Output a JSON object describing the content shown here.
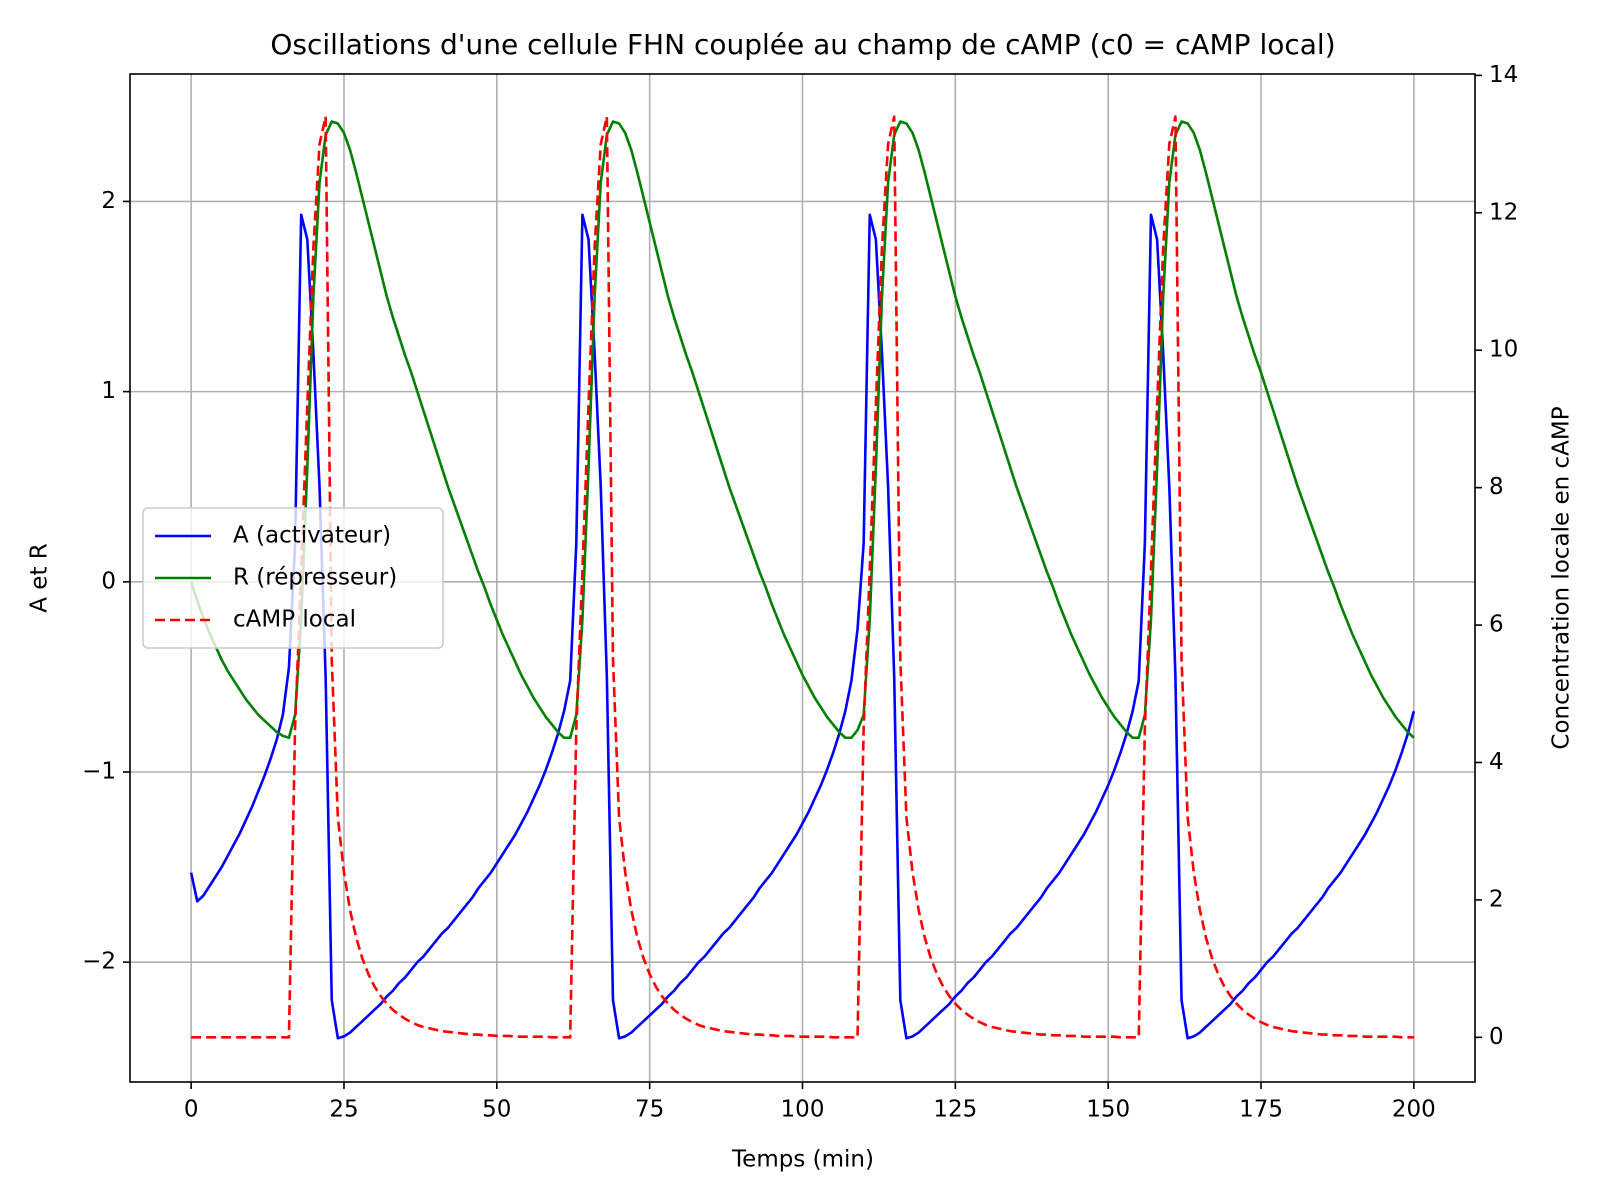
{
  "chart_data": {
    "type": "line",
    "title": "Oscillations d'une cellule FHN couplée au champ de cAMP (c0 = cAMP local)",
    "xlabel": "Temps (min)",
    "ylabel": "A et R",
    "y2label": "Concentration locale en cAMP",
    "x": [
      0,
      1,
      2,
      3,
      4,
      5,
      6,
      7,
      8,
      9,
      10,
      11,
      12,
      13,
      14,
      15,
      16,
      17,
      18,
      19,
      20,
      21,
      22,
      23,
      24,
      25,
      26,
      27,
      28,
      29,
      30,
      31,
      32,
      33,
      34,
      35,
      36,
      37,
      38,
      39,
      40,
      41,
      42,
      43,
      44,
      45,
      46,
      47,
      48,
      49,
      50,
      51,
      52,
      53,
      54,
      55,
      56,
      57,
      58,
      59,
      60,
      61,
      62,
      63,
      64,
      65,
      66,
      67,
      68,
      69,
      70,
      71,
      72,
      73,
      74,
      75,
      76,
      77,
      78,
      79,
      80,
      81,
      82,
      83,
      84,
      85,
      86,
      87,
      88,
      89,
      90,
      91,
      92,
      93,
      94,
      95,
      96,
      97,
      98,
      99,
      100,
      101,
      102,
      103,
      104,
      105,
      106,
      107,
      108,
      109,
      110,
      111,
      112,
      113,
      114,
      115,
      116,
      117,
      118,
      119,
      120,
      121,
      122,
      123,
      124,
      125,
      126,
      127,
      128,
      129,
      130,
      131,
      132,
      133,
      134,
      135,
      136,
      137,
      138,
      139,
      140,
      141,
      142,
      143,
      144,
      145,
      146,
      147,
      148,
      149,
      150,
      151,
      152,
      153,
      154,
      155,
      156,
      157,
      158,
      159,
      160,
      161,
      162,
      163,
      164,
      165,
      166,
      167,
      168,
      169,
      170,
      171,
      172,
      173,
      174,
      175,
      176,
      177,
      178,
      179,
      180,
      181,
      182,
      183,
      184,
      185,
      186,
      187,
      188,
      189,
      190,
      191,
      192,
      193,
      194,
      195,
      196,
      197,
      198,
      199,
      200
    ],
    "series": [
      {
        "name": "A (activateur)",
        "color": "#0000ff",
        "linestyle": "solid",
        "axis": "y",
        "values": [
          -1.53,
          -1.68,
          -1.65,
          -1.6,
          -1.55,
          -1.5,
          -1.44,
          -1.38,
          -1.32,
          -1.25,
          -1.18,
          -1.1,
          -1.02,
          -0.93,
          -0.83,
          -0.7,
          -0.45,
          0.2,
          1.93,
          1.8,
          1.2,
          0.5,
          -0.5,
          -2.2,
          -2.4,
          -2.39,
          -2.37,
          -2.34,
          -2.31,
          -2.28,
          -2.25,
          -2.22,
          -2.18,
          -2.15,
          -2.11,
          -2.08,
          -2.04,
          -2.0,
          -1.97,
          -1.93,
          -1.89,
          -1.85,
          -1.82,
          -1.78,
          -1.74,
          -1.7,
          -1.66,
          -1.61,
          -1.57,
          -1.53,
          -1.48,
          -1.43,
          -1.38,
          -1.33,
          -1.27,
          -1.21,
          -1.14,
          -1.07,
          -0.99,
          -0.9,
          -0.8,
          -0.68,
          -0.52,
          0.2,
          1.93,
          1.8,
          1.2,
          0.5,
          -0.5,
          -2.2,
          -2.4,
          -2.39,
          -2.37,
          -2.34,
          -2.31,
          -2.28,
          -2.25,
          -2.22,
          -2.18,
          -2.15,
          -2.11,
          -2.08,
          -2.04,
          -2.0,
          -1.97,
          -1.93,
          -1.89,
          -1.85,
          -1.82,
          -1.78,
          -1.74,
          -1.7,
          -1.66,
          -1.61,
          -1.57,
          -1.53,
          -1.48,
          -1.43,
          -1.38,
          -1.33,
          -1.27,
          -1.21,
          -1.14,
          -1.07,
          -0.99,
          -0.9,
          -0.8,
          -0.68,
          -0.52,
          -0.25,
          0.2,
          1.93,
          1.8,
          1.2,
          0.5,
          -0.5,
          -2.2,
          -2.4,
          -2.39,
          -2.37,
          -2.34,
          -2.31,
          -2.28,
          -2.25,
          -2.22,
          -2.18,
          -2.15,
          -2.11,
          -2.08,
          -2.04,
          -2.0,
          -1.97,
          -1.93,
          -1.89,
          -1.85,
          -1.82,
          -1.78,
          -1.74,
          -1.7,
          -1.66,
          -1.61,
          -1.57,
          -1.53,
          -1.48,
          -1.43,
          -1.38,
          -1.33,
          -1.27,
          -1.21,
          -1.14,
          -1.07,
          -0.99,
          -0.9,
          -0.8,
          -0.68,
          -0.52,
          0.2,
          1.93,
          1.8,
          1.2,
          0.5,
          -0.5,
          -2.2,
          -2.4,
          -2.39,
          -2.37,
          -2.34,
          -2.31,
          -2.28,
          -2.25,
          -2.22,
          -2.18,
          -2.15,
          -2.11,
          -2.08,
          -2.04,
          -2.0,
          -1.97,
          -1.93,
          -1.89,
          -1.85,
          -1.82,
          -1.78,
          -1.74,
          -1.7,
          -1.66,
          -1.61,
          -1.57,
          -1.53,
          -1.48,
          -1.43,
          -1.38,
          -1.33,
          -1.27,
          -1.21,
          -1.14,
          -1.07,
          -0.99,
          -0.9,
          -0.8,
          -0.68
        ]
      },
      {
        "name": "R (répresseur)",
        "color": "#008000",
        "linestyle": "solid",
        "axis": "y",
        "values": [
          0,
          -0.1,
          -0.19,
          -0.27,
          -0.34,
          -0.41,
          -0.47,
          -0.52,
          -0.57,
          -0.62,
          -0.66,
          -0.7,
          -0.73,
          -0.76,
          -0.79,
          -0.81,
          -0.82,
          -0.7,
          -0.2,
          0.6,
          1.5,
          2.1,
          2.35,
          2.42,
          2.41,
          2.36,
          2.27,
          2.15,
          2.02,
          1.89,
          1.76,
          1.63,
          1.5,
          1.39,
          1.29,
          1.19,
          1.1,
          1.0,
          0.9,
          0.8,
          0.7,
          0.6,
          0.5,
          0.41,
          0.32,
          0.23,
          0.14,
          0.05,
          -0.03,
          -0.12,
          -0.2,
          -0.28,
          -0.35,
          -0.42,
          -0.49,
          -0.55,
          -0.61,
          -0.66,
          -0.71,
          -0.75,
          -0.79,
          -0.82,
          -0.82,
          -0.7,
          -0.2,
          0.6,
          1.5,
          2.1,
          2.35,
          2.42,
          2.41,
          2.36,
          2.27,
          2.15,
          2.02,
          1.89,
          1.76,
          1.63,
          1.5,
          1.39,
          1.29,
          1.19,
          1.1,
          1.0,
          0.9,
          0.8,
          0.7,
          0.6,
          0.5,
          0.41,
          0.32,
          0.23,
          0.14,
          0.05,
          -0.03,
          -0.12,
          -0.2,
          -0.28,
          -0.35,
          -0.42,
          -0.49,
          -0.55,
          -0.61,
          -0.66,
          -0.71,
          -0.75,
          -0.79,
          -0.82,
          -0.82,
          -0.78,
          -0.7,
          -0.2,
          0.6,
          1.5,
          2.1,
          2.35,
          2.42,
          2.41,
          2.36,
          2.27,
          2.15,
          2.02,
          1.89,
          1.76,
          1.63,
          1.5,
          1.39,
          1.29,
          1.19,
          1.1,
          1.0,
          0.9,
          0.8,
          0.7,
          0.6,
          0.5,
          0.41,
          0.32,
          0.23,
          0.14,
          0.05,
          -0.03,
          -0.12,
          -0.2,
          -0.28,
          -0.35,
          -0.42,
          -0.49,
          -0.55,
          -0.61,
          -0.66,
          -0.71,
          -0.75,
          -0.79,
          -0.82,
          -0.82,
          -0.7,
          -0.2,
          0.6,
          1.5,
          2.1,
          2.35,
          2.42,
          2.41,
          2.36,
          2.27,
          2.15,
          2.02,
          1.89,
          1.76,
          1.63,
          1.5,
          1.39,
          1.29,
          1.19,
          1.1,
          1.0,
          0.9,
          0.8,
          0.7,
          0.6,
          0.5,
          0.41,
          0.32,
          0.23,
          0.14,
          0.05,
          -0.03,
          -0.12,
          -0.2,
          -0.28,
          -0.35,
          -0.42,
          -0.49,
          -0.55,
          -0.61,
          -0.66,
          -0.71,
          -0.75,
          -0.79,
          -0.82
        ]
      },
      {
        "name": "cAMP local",
        "color": "#ff0000",
        "linestyle": "dashed",
        "axis": "y2",
        "values": [
          0,
          0,
          0,
          0,
          0,
          0,
          0,
          0,
          0,
          0,
          0,
          0,
          0,
          0,
          0,
          0,
          0,
          4.5,
          6.8,
          9.2,
          11.5,
          13.0,
          13.4,
          5.5,
          3.2,
          2.4,
          1.85,
          1.45,
          1.15,
          0.92,
          0.74,
          0.6,
          0.49,
          0.4,
          0.33,
          0.27,
          0.22,
          0.18,
          0.15,
          0.13,
          0.11,
          0.09,
          0.08,
          0.07,
          0.06,
          0.05,
          0.04,
          0.04,
          0.03,
          0.03,
          0.02,
          0.02,
          0.02,
          0.01,
          0.01,
          0.01,
          0.01,
          0.01,
          0.01,
          0,
          0,
          0,
          0,
          4.5,
          6.8,
          9.2,
          11.5,
          13.0,
          13.4,
          5.5,
          3.2,
          2.4,
          1.85,
          1.45,
          1.15,
          0.92,
          0.74,
          0.6,
          0.49,
          0.4,
          0.33,
          0.27,
          0.22,
          0.18,
          0.15,
          0.13,
          0.11,
          0.09,
          0.08,
          0.07,
          0.06,
          0.05,
          0.04,
          0.04,
          0.03,
          0.03,
          0.02,
          0.02,
          0.02,
          0.01,
          0.01,
          0.01,
          0.01,
          0.01,
          0.01,
          0,
          0,
          0,
          0,
          0,
          4.5,
          6.8,
          9.2,
          11.5,
          13.0,
          13.4,
          5.5,
          3.2,
          2.4,
          1.85,
          1.45,
          1.15,
          0.92,
          0.74,
          0.6,
          0.49,
          0.4,
          0.33,
          0.27,
          0.22,
          0.18,
          0.15,
          0.13,
          0.11,
          0.09,
          0.08,
          0.07,
          0.06,
          0.05,
          0.04,
          0.04,
          0.03,
          0.03,
          0.02,
          0.02,
          0.02,
          0.01,
          0.01,
          0.01,
          0.01,
          0.01,
          0.01,
          0,
          0,
          0,
          0,
          4.5,
          6.8,
          9.2,
          11.5,
          13.0,
          13.4,
          5.5,
          3.2,
          2.4,
          1.85,
          1.45,
          1.15,
          0.92,
          0.74,
          0.6,
          0.49,
          0.4,
          0.33,
          0.27,
          0.22,
          0.18,
          0.15,
          0.13,
          0.11,
          0.09,
          0.08,
          0.07,
          0.06,
          0.05,
          0.04,
          0.04,
          0.03,
          0.03,
          0.02,
          0.02,
          0.02,
          0.01,
          0.01,
          0.01,
          0.01,
          0.01,
          0.01,
          0,
          0,
          0
        ]
      }
    ],
    "xlim": [
      -10,
      210
    ],
    "xticks": [
      0,
      25,
      50,
      75,
      100,
      125,
      150,
      175,
      200
    ],
    "ylim": [
      -2.63,
      2.67
    ],
    "yticks": [
      {
        "value": -2,
        "label": "−2"
      },
      {
        "value": -1,
        "label": "−1"
      },
      0,
      1,
      2
    ],
    "y2lim": [
      -0.65,
      14.02
    ],
    "y2ticks": [
      0,
      2,
      4,
      6,
      8,
      10,
      12,
      14
    ],
    "grid": true,
    "legend": "center left"
  }
}
